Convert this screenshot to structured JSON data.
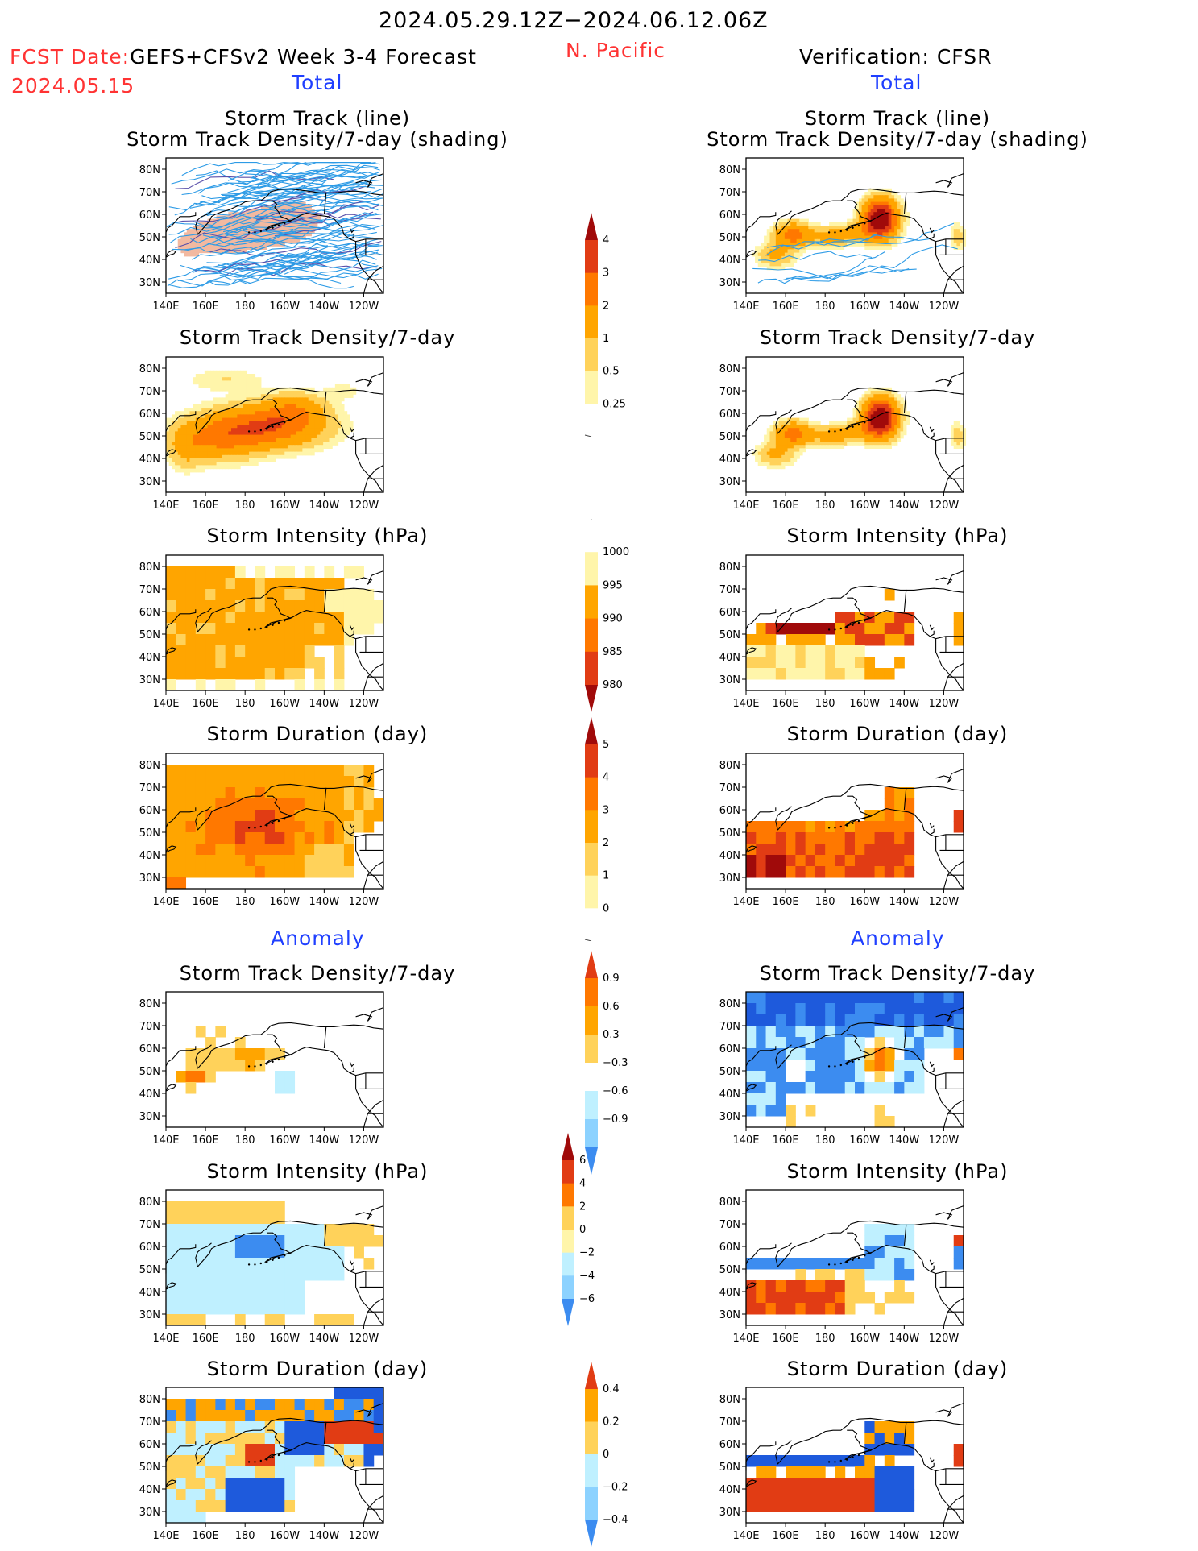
{
  "header": {
    "date_range": "2024.05.29.12Z−2024.06.12.06Z",
    "fcst_label": "FCST Date:",
    "fcst_model": "GEFS+CFSv2 Week 3-4 Forecast",
    "fcst_date": "2024.05.15",
    "region": "N. Pacific",
    "verification": "Verification: CFSR",
    "total_left": "Total",
    "total_right": "Total",
    "anomaly_left": "Anomaly",
    "anomaly_right": "Anomaly"
  },
  "colors": {
    "yellow_light": "#fff5aa",
    "yellow": "#ffd25a",
    "orange_light": "#ffa500",
    "orange": "#ff7800",
    "red": "#e13c14",
    "dark_red": "#a00a0a",
    "cyan_light": "#bff0ff",
    "blue_light": "#8cd2ff",
    "blue": "#3c8cf0",
    "blue_dark": "#1e5adc",
    "track_line": "#2d9be6",
    "track_dark": "#5a50aa"
  },
  "chart_data": [
    {
      "type": "heatmap",
      "panel": "forecast-total-storm-track",
      "title": "Storm Track (line)",
      "subtitle": "Storm Track Density/7-day (shading)",
      "x_ticks": [
        "140E",
        "160E",
        "180",
        "160W",
        "140W",
        "120W"
      ],
      "y_ticks": [
        "80N",
        "70N",
        "60N",
        "50N",
        "40N",
        "30N"
      ],
      "lon_range": [
        140,
        250
      ],
      "lat_range": [
        25,
        85
      ],
      "track_count": 90,
      "density_max": 0.5,
      "maxima": [
        {
          "lon": 189,
          "lat": 53,
          "value": 0.5
        }
      ]
    },
    {
      "type": "heatmap",
      "panel": "verification-total-storm-track",
      "title": "Storm Track (line)",
      "subtitle": "Storm Track Density/7-day (shading)",
      "x_ticks": [
        "140E",
        "160E",
        "180",
        "160W",
        "140W",
        "120W"
      ],
      "y_ticks": [
        "80N",
        "70N",
        "60N",
        "50N",
        "40N",
        "30N"
      ],
      "lon_range": [
        140,
        250
      ],
      "lat_range": [
        25,
        85
      ],
      "track_count": 8,
      "maxima": [
        {
          "lon": 164,
          "lat": 51,
          "value": 3
        },
        {
          "lon": 207,
          "lat": 58,
          "value": 4
        }
      ]
    },
    {
      "type": "heatmap",
      "panel": "forecast-total-density",
      "title": "Storm Track Density/7-day",
      "x_ticks": [
        "140E",
        "160E",
        "180",
        "160W",
        "140W",
        "120W"
      ],
      "y_ticks": [
        "80N",
        "70N",
        "60N",
        "50N",
        "40N",
        "30N"
      ],
      "levels": [
        0.25,
        0.5,
        1,
        2,
        3,
        4
      ],
      "maxima": [
        {
          "lon": 188,
          "lat": 54,
          "value": 3
        }
      ]
    },
    {
      "type": "heatmap",
      "panel": "verification-total-density",
      "title": "Storm Track Density/7-day",
      "x_ticks": [
        "140E",
        "160E",
        "180",
        "160W",
        "140W",
        "120W"
      ],
      "y_ticks": [
        "80N",
        "70N",
        "60N",
        "50N",
        "40N",
        "30N"
      ],
      "levels": [
        0.25,
        0.5,
        1,
        2,
        3,
        4
      ],
      "maxima": [
        {
          "lon": 164,
          "lat": 51,
          "value": 3
        },
        {
          "lon": 207,
          "lat": 58,
          "value": 4
        }
      ]
    },
    {
      "type": "heatmap",
      "panel": "forecast-total-intensity",
      "title": "Storm Intensity (hPa)",
      "x_ticks": [
        "140E",
        "160E",
        "180",
        "160W",
        "140W",
        "120W"
      ],
      "y_ticks": [
        "80N",
        "70N",
        "60N",
        "50N",
        "40N",
        "30N"
      ],
      "levels": [
        1000,
        995,
        990,
        985,
        980
      ],
      "dominant_value": 992
    },
    {
      "type": "heatmap",
      "panel": "verification-total-intensity",
      "title": "Storm Intensity (hPa)",
      "x_ticks": [
        "140E",
        "160E",
        "180",
        "160W",
        "140W",
        "120W"
      ],
      "y_ticks": [
        "80N",
        "70N",
        "60N",
        "50N",
        "40N",
        "30N"
      ],
      "levels": [
        1000,
        995,
        990,
        985,
        980
      ],
      "minima": [
        {
          "lon": 168,
          "lat": 53,
          "value": 982
        }
      ]
    },
    {
      "type": "heatmap",
      "panel": "forecast-total-duration",
      "title": "Storm Duration (day)",
      "x_ticks": [
        "140E",
        "160E",
        "180",
        "160W",
        "140W",
        "120W"
      ],
      "y_ticks": [
        "80N",
        "70N",
        "60N",
        "50N",
        "40N",
        "30N"
      ],
      "levels": [
        0,
        1,
        2,
        3,
        4,
        5
      ],
      "maxima": [
        {
          "lon": 185,
          "lat": 53,
          "value": 3.5
        }
      ]
    },
    {
      "type": "heatmap",
      "panel": "verification-total-duration",
      "title": "Storm Duration (day)",
      "x_ticks": [
        "140E",
        "160E",
        "180",
        "160W",
        "140W",
        "120W"
      ],
      "y_ticks": [
        "80N",
        "70N",
        "60N",
        "50N",
        "40N",
        "30N"
      ],
      "levels": [
        0,
        1,
        2,
        3,
        4,
        5
      ],
      "maxima": [
        {
          "lon": 148,
          "lat": 37,
          "value": 5
        }
      ]
    },
    {
      "type": "heatmap",
      "panel": "forecast-anomaly-density",
      "title": "Storm Track Density/7-day",
      "x_ticks": [
        "140E",
        "160E",
        "180",
        "160W",
        "140W",
        "120W"
      ],
      "y_ticks": [
        "80N",
        "70N",
        "60N",
        "50N",
        "40N",
        "30N"
      ],
      "levels": [
        -0.9,
        -0.6,
        -0.3,
        0.3,
        0.6,
        0.9
      ],
      "maxima": [
        {
          "lon": 152,
          "lat": 48,
          "value": 0.9
        }
      ]
    },
    {
      "type": "heatmap",
      "panel": "verification-anomaly-density",
      "title": "Storm Track Density/7-day",
      "x_ticks": [
        "140E",
        "160E",
        "180",
        "160W",
        "140W",
        "120W"
      ],
      "y_ticks": [
        "80N",
        "70N",
        "60N",
        "50N",
        "40N",
        "30N"
      ],
      "levels": [
        -0.9,
        -0.6,
        -0.3,
        0.3,
        0.6,
        0.9
      ],
      "maxima": [
        {
          "lon": 207,
          "lat": 55,
          "value": 0.9
        }
      ]
    },
    {
      "type": "heatmap",
      "panel": "forecast-anomaly-intensity",
      "title": "Storm Intensity (hPa)",
      "x_ticks": [
        "140E",
        "160E",
        "180",
        "160W",
        "140W",
        "120W"
      ],
      "y_ticks": [
        "80N",
        "70N",
        "60N",
        "50N",
        "40N",
        "30N"
      ],
      "levels": [
        -6,
        -4,
        -2,
        0,
        2,
        4,
        6
      ]
    },
    {
      "type": "heatmap",
      "panel": "verification-anomaly-intensity",
      "title": "Storm Intensity (hPa)",
      "x_ticks": [
        "140E",
        "160E",
        "180",
        "160W",
        "140W",
        "120W"
      ],
      "y_ticks": [
        "80N",
        "70N",
        "60N",
        "50N",
        "40N",
        "30N"
      ],
      "levels": [
        -6,
        -4,
        -2,
        0,
        2,
        4,
        6
      ]
    },
    {
      "type": "heatmap",
      "panel": "forecast-anomaly-duration",
      "title": "Storm Duration (day)",
      "x_ticks": [
        "140E",
        "160E",
        "180",
        "160W",
        "140W",
        "120W"
      ],
      "y_ticks": [
        "80N",
        "70N",
        "60N",
        "50N",
        "40N",
        "30N"
      ],
      "levels": [
        -0.4,
        -0.2,
        0,
        0.2,
        0.4
      ]
    },
    {
      "type": "heatmap",
      "panel": "verification-anomaly-duration",
      "title": "Storm Duration (day)",
      "x_ticks": [
        "140E",
        "160E",
        "180",
        "160W",
        "140W",
        "120W"
      ],
      "y_ticks": [
        "80N",
        "70N",
        "60N",
        "50N",
        "40N",
        "30N"
      ],
      "levels": [
        -0.4,
        -0.2,
        0,
        0.2,
        0.4
      ]
    }
  ],
  "colorbars": [
    {
      "name": "density",
      "labels": [
        "4",
        "3",
        "2",
        "1",
        "0.5",
        "0.25"
      ]
    },
    {
      "name": "intensity",
      "labels": [
        "1000",
        "995",
        "990",
        "985",
        "980"
      ]
    },
    {
      "name": "duration",
      "labels": [
        "5",
        "4",
        "3",
        "2",
        "1",
        "0"
      ]
    },
    {
      "name": "density-anomaly",
      "labels": [
        "0.9",
        "0.6",
        "0.3",
        "−0.3",
        "−0.6",
        "−0.9"
      ]
    },
    {
      "name": "intensity-anomaly",
      "labels": [
        "6",
        "4",
        "2",
        "0",
        "−2",
        "−4",
        "−6"
      ]
    },
    {
      "name": "duration-anomaly",
      "labels": [
        "0.4",
        "0.2",
        "0",
        "−0.2",
        "−0.4"
      ]
    }
  ]
}
